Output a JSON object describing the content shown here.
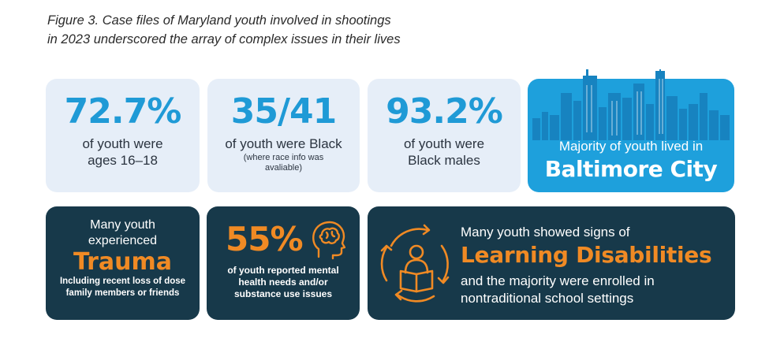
{
  "caption": {
    "line1": "Figure 3. Case files of Maryland youth involved in shootings",
    "line2": "in 2023 underscored the array of complex issues in their lives"
  },
  "stat1": {
    "value": "72.7%",
    "line1": "of youth were",
    "line2": "ages 16–18"
  },
  "stat2": {
    "value": "35/41",
    "line1": "of youth were Black",
    "note1": "(where race info was",
    "note2": "avaliable)"
  },
  "stat3": {
    "value": "93.2%",
    "line1": "of youth were",
    "line2": "Black males"
  },
  "baltimore": {
    "line1": "Majority of youth lived in",
    "line2": "Baltimore City"
  },
  "trauma": {
    "line1": "Many youth",
    "line2": "experienced",
    "headline": "Trauma",
    "detail1": "Including recent loss of dose",
    "detail2": "family members or friends"
  },
  "mental": {
    "value": "55%",
    "line1": "of youth reported mental",
    "line2": "health needs and/or",
    "line3": "substance use issues",
    "icon": "brain-head-icon"
  },
  "learning": {
    "line1": "Many youth showed signs of",
    "headline": "Learning Disabilities",
    "line2": "and the majority were enrolled in",
    "line3": "nontraditional school settings",
    "icon": "reader-cycle-icon"
  },
  "colors": {
    "accent_blue": "#1f9ad6",
    "orange": "#f08a24",
    "dark_navy": "#17394a",
    "light_card": "#e6eef8",
    "city_blue": "#1ea0dc"
  }
}
